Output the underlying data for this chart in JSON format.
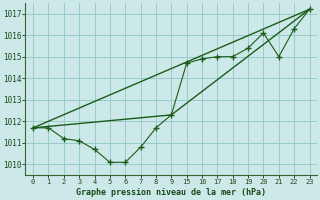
{
  "bg_color": "#cce8e8",
  "grid_color": "#99cccc",
  "line_color": "#1a5c1a",
  "title": "Graphe pression niveau de la mer (hPa)",
  "ylabel_vals": [
    1010,
    1011,
    1012,
    1013,
    1014,
    1015,
    1016,
    1017
  ],
  "xtick_positions": [
    0,
    1,
    2,
    3,
    4,
    5,
    6,
    7,
    8,
    9,
    10,
    11,
    12,
    13,
    14,
    15,
    16,
    17,
    18
  ],
  "xtick_labels": [
    "0",
    "1",
    "2",
    "3",
    "4",
    "5",
    "6",
    "7",
    "8",
    "9",
    "15",
    "16",
    "17",
    "18",
    "19",
    "20",
    "21",
    "22",
    "23"
  ],
  "series1_x": [
    0,
    1,
    2,
    3,
    4,
    5,
    6,
    7,
    8,
    9,
    10,
    11,
    12,
    13,
    14,
    15,
    16,
    17,
    18
  ],
  "series1_y": [
    1011.7,
    1011.7,
    1011.2,
    1011.1,
    1010.7,
    1010.1,
    1010.1,
    1010.8,
    1011.7,
    1012.3,
    1014.7,
    1014.9,
    1015.0,
    1015.0,
    1015.4,
    1016.1,
    1015.0,
    1016.3,
    1017.2
  ],
  "series2_x": [
    0,
    9,
    18
  ],
  "series2_y": [
    1011.7,
    1012.3,
    1017.2
  ],
  "series3_x": [
    0,
    18
  ],
  "series3_y": [
    1011.7,
    1017.2
  ],
  "ylim": [
    1009.5,
    1017.5
  ],
  "xlim": [
    -0.5,
    18.5
  ]
}
